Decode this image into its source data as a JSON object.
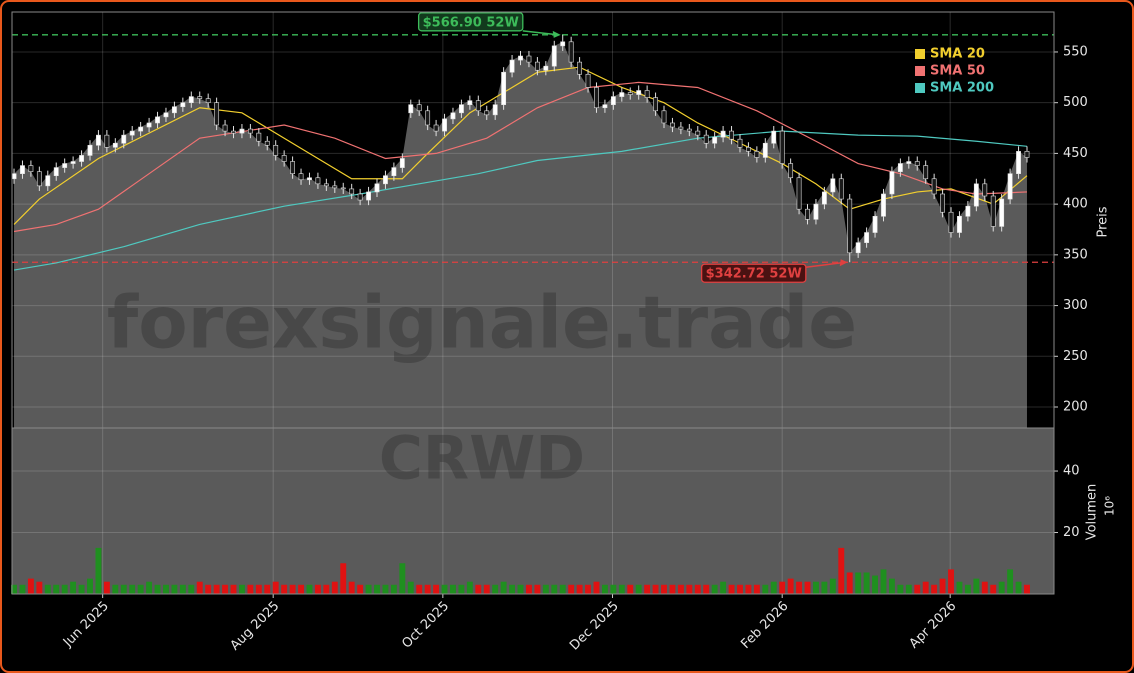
{
  "chart_data": {
    "type": "candlestick",
    "watermark": "forexsignale.trade",
    "symbol": "CRWD",
    "xlim": [
      -0.24,
      123.2
    ],
    "xticks": [
      {
        "value": 10.5,
        "label": "Jun 2025"
      },
      {
        "value": 30.7,
        "label": "Aug 2025"
      },
      {
        "value": 50.8,
        "label": "Oct 2025"
      },
      {
        "value": 70.9,
        "label": "Dec 2025"
      },
      {
        "value": 91.0,
        "label": "Feb 2026"
      },
      {
        "value": 110.9,
        "label": "Apr 2026"
      }
    ],
    "ylim": [
      179.3,
      589.4
    ],
    "yticks": [
      200,
      250,
      300,
      350,
      400,
      450,
      500,
      550
    ],
    "ylabel": "Preis",
    "grid": true,
    "up_color": "#ffffff",
    "down_color": "#1a1a1a",
    "open": [
      425,
      430,
      438,
      432,
      418,
      428,
      436,
      440,
      442,
      448,
      458,
      468,
      456,
      460,
      468,
      472,
      476,
      480,
      486,
      490,
      496,
      500,
      506,
      504,
      500,
      478,
      472,
      470,
      474,
      470,
      462,
      458,
      448,
      442,
      430,
      424,
      426,
      420,
      418,
      416,
      415,
      410,
      404,
      412,
      420,
      428,
      436,
      490,
      498,
      492,
      478,
      472,
      484,
      490,
      498,
      502,
      492,
      488,
      498,
      530,
      542,
      546,
      540,
      532,
      536,
      556,
      560,
      540,
      528,
      515,
      495,
      498,
      506,
      510,
      508,
      512,
      505,
      492,
      480,
      476,
      474,
      472,
      468,
      460,
      466,
      472,
      464,
      456,
      452,
      446,
      460,
      472,
      440,
      426,
      395,
      385,
      400,
      412,
      425,
      405,
      352,
      362,
      372,
      388,
      410,
      432,
      440,
      442,
      438,
      425,
      410,
      392,
      372,
      388,
      398,
      420,
      408,
      378,
      405,
      430,
      452
    ],
    "high": [
      435,
      443,
      443,
      437,
      433,
      441,
      445,
      447,
      453,
      463,
      473,
      473,
      465,
      473,
      477,
      481,
      485,
      491,
      495,
      501,
      505,
      511,
      511,
      509,
      505,
      483,
      477,
      479,
      479,
      475,
      467,
      463,
      453,
      447,
      435,
      431,
      431,
      425,
      423,
      421,
      420,
      415,
      417,
      425,
      433,
      441,
      450,
      503,
      503,
      497,
      483,
      489,
      495,
      503,
      507,
      507,
      497,
      503,
      535,
      547,
      551,
      551,
      545,
      541,
      561,
      566.9,
      565,
      545,
      533,
      520,
      503,
      511,
      515,
      515,
      517,
      517,
      510,
      497,
      485,
      481,
      479,
      477,
      473,
      471,
      477,
      477,
      469,
      461,
      457,
      465,
      477,
      477,
      445,
      431,
      400,
      405,
      417,
      430,
      430,
      410,
      367,
      377,
      393,
      415,
      437,
      445,
      447,
      447,
      443,
      430,
      415,
      397,
      393,
      403,
      425,
      425,
      413,
      410,
      435,
      457,
      457
    ],
    "low": [
      420,
      425,
      427,
      413,
      413,
      423,
      431,
      435,
      437,
      443,
      453,
      451,
      451,
      455,
      463,
      467,
      471,
      475,
      481,
      485,
      491,
      495,
      499,
      495,
      473,
      467,
      465,
      465,
      465,
      457,
      453,
      443,
      437,
      425,
      419,
      419,
      415,
      413,
      411,
      410,
      405,
      399,
      399,
      407,
      415,
      423,
      431,
      485,
      487,
      473,
      467,
      467,
      479,
      485,
      493,
      487,
      483,
      483,
      493,
      525,
      537,
      535,
      527,
      527,
      531,
      551,
      535,
      523,
      510,
      490,
      490,
      493,
      501,
      503,
      503,
      500,
      487,
      475,
      471,
      469,
      467,
      463,
      455,
      455,
      461,
      459,
      451,
      447,
      441,
      441,
      455,
      435,
      421,
      390,
      380,
      380,
      395,
      407,
      400,
      342.72,
      347,
      357,
      367,
      383,
      405,
      427,
      435,
      433,
      420,
      405,
      387,
      367,
      367,
      383,
      393,
      403,
      373,
      373,
      400,
      425,
      441
    ],
    "close": [
      430,
      438,
      432,
      418,
      428,
      436,
      440,
      442,
      448,
      458,
      468,
      456,
      460,
      468,
      472,
      476,
      480,
      486,
      490,
      496,
      500,
      506,
      504,
      500,
      478,
      472,
      470,
      474,
      470,
      462,
      458,
      448,
      442,
      430,
      424,
      426,
      420,
      418,
      416,
      415,
      410,
      404,
      412,
      420,
      428,
      436,
      445,
      498,
      492,
      478,
      472,
      484,
      490,
      498,
      502,
      492,
      488,
      498,
      530,
      542,
      546,
      540,
      532,
      536,
      556,
      560,
      540,
      528,
      515,
      495,
      498,
      506,
      510,
      508,
      512,
      505,
      492,
      480,
      476,
      474,
      472,
      468,
      460,
      466,
      472,
      464,
      456,
      452,
      446,
      460,
      472,
      440,
      426,
      395,
      385,
      400,
      412,
      425,
      405,
      352,
      362,
      372,
      388,
      410,
      432,
      440,
      442,
      438,
      425,
      410,
      392,
      372,
      388,
      398,
      420,
      408,
      378,
      405,
      430,
      452,
      446
    ],
    "averages": [
      {
        "name": "SMA 20",
        "color": "#f2cf2e",
        "x": [
          0,
          3,
          10,
          16,
          22,
          27,
          34,
          40,
          46,
          49,
          54,
          58,
          62,
          67,
          72,
          77,
          81,
          86,
          91,
          95,
          99,
          103,
          107,
          111,
          116,
          120
        ],
        "values": [
          380,
          405,
          445,
          470,
          495,
          490,
          455,
          425,
          425,
          450,
          490,
          510,
          530,
          535,
          515,
          500,
          480,
          460,
          440,
          420,
          395,
          405,
          412,
          415,
          400,
          428
        ]
      },
      {
        "name": "SMA 50",
        "color": "#f07272",
        "x": [
          0,
          5,
          10,
          16,
          22,
          32,
          38,
          44,
          50,
          56,
          62,
          68,
          74,
          81,
          88,
          95,
          100,
          105,
          110,
          114,
          120
        ],
        "values": [
          373,
          380,
          395,
          430,
          465,
          478,
          465,
          445,
          450,
          465,
          495,
          515,
          520,
          515,
          492,
          462,
          440,
          430,
          415,
          410,
          412
        ]
      },
      {
        "name": "SMA 200",
        "color": "#4fc9c0",
        "x": [
          0,
          5,
          13,
          22,
          32,
          41,
          48,
          55,
          62,
          72,
          81,
          91,
          100,
          107,
          114,
          120
        ],
        "values": [
          335,
          342,
          358,
          380,
          398,
          410,
          420,
          430,
          443,
          452,
          465,
          472,
          468,
          467,
          462,
          457
        ]
      }
    ],
    "annotations": [
      {
        "text": "$566.90 52W",
        "value": 566.9,
        "color": "#3dbb5a"
      },
      {
        "text": "$342.72 52W",
        "value": 342.72,
        "color": "#e04040"
      }
    ],
    "volume": {
      "ylabel": "Volumen",
      "scale_label": "10⁶",
      "ylim": [
        0,
        54
      ],
      "yticks": [
        20,
        40
      ],
      "up_color": "#1f8f1f",
      "down_color": "#e01212",
      "values": [
        3,
        3,
        5,
        4,
        3,
        3,
        3,
        4,
        3,
        5,
        15,
        4,
        3,
        3,
        3,
        3,
        4,
        3,
        3,
        3,
        3,
        3,
        4,
        3,
        3,
        3,
        3,
        3,
        3,
        3,
        3,
        4,
        3,
        3,
        3,
        3,
        3,
        3,
        4,
        10,
        4,
        3,
        3,
        3,
        3,
        3,
        10,
        4,
        3,
        3,
        3,
        3,
        3,
        3,
        4,
        3,
        3,
        3,
        4,
        3,
        3,
        3,
        3,
        3,
        3,
        3,
        3,
        3,
        3,
        4,
        3,
        3,
        3,
        3,
        3,
        3,
        3,
        3,
        3,
        3,
        3,
        3,
        3,
        3,
        4,
        3,
        3,
        3,
        3,
        3,
        4,
        4,
        5,
        4,
        4,
        4,
        4,
        5,
        15,
        7,
        7,
        7,
        6,
        8,
        5,
        3,
        3,
        3,
        4,
        3,
        5,
        8,
        4,
        3,
        5,
        4,
        3,
        4,
        8,
        4,
        3
      ]
    }
  }
}
